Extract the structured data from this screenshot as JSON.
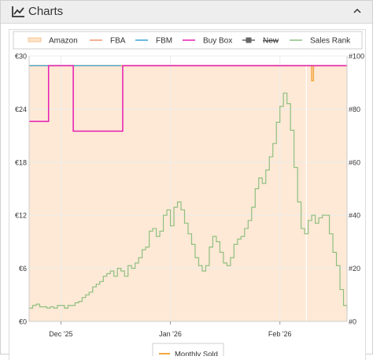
{
  "header": {
    "title": "Charts",
    "icon": "line-chart-icon",
    "collapse_icon": "chevron-up-icon"
  },
  "chart_data": {
    "type": "line",
    "legend": [
      {
        "name": "Amazon",
        "color": "#f7c89a",
        "style": "area",
        "struck": false
      },
      {
        "name": "FBA",
        "color": "#f0966e",
        "style": "line",
        "struck": false
      },
      {
        "name": "FBM",
        "color": "#3aa3d8",
        "style": "line",
        "struck": false
      },
      {
        "name": "Buy Box",
        "color": "#e61cb3",
        "style": "line",
        "struck": false
      },
      {
        "name": "New",
        "color": "#666666",
        "style": "square-line",
        "struck": true
      },
      {
        "name": "Sales Rank",
        "color": "#8fbf80",
        "style": "line",
        "struck": false
      }
    ],
    "bottom_legend": [
      {
        "name": "Monthly Sold",
        "color": "#f3a640"
      }
    ],
    "y_left_ticks": [
      "€0",
      "€6",
      "€12",
      "€18",
      "€24",
      "€30"
    ],
    "y_left_range": [
      0,
      30
    ],
    "y_right_ticks": [
      "#0",
      "#20",
      "#40",
      "#60",
      "#80",
      "#100"
    ],
    "y_right_range": [
      0,
      100
    ],
    "x_ticks": [
      {
        "label": "Dec '25",
        "day": 9
      },
      {
        "label": "Jan '26",
        "day": 40
      },
      {
        "label": "Feb '26",
        "day": 71
      }
    ],
    "x_range_days": [
      0,
      90
    ],
    "amazon_price": {
      "value": 28.9,
      "dip": {
        "day_from": 80,
        "day_to": 80.5,
        "value": 27.2
      }
    },
    "fbm_price": {
      "from_day": 0,
      "to_day": 26,
      "value": 28.9
    },
    "buy_box": [
      [
        0,
        22.6
      ],
      [
        5.5,
        22.6
      ],
      [
        5.5,
        28.9
      ],
      [
        12.5,
        28.9
      ],
      [
        12.5,
        21.5
      ],
      [
        26.5,
        21.5
      ],
      [
        26.5,
        28.9
      ],
      [
        90,
        28.9
      ]
    ],
    "sales_rank": [
      [
        0,
        5
      ],
      [
        1,
        6
      ],
      [
        2,
        6.5
      ],
      [
        3,
        5.5
      ],
      [
        4,
        5.5
      ],
      [
        5,
        5
      ],
      [
        6,
        5.5
      ],
      [
        7,
        5
      ],
      [
        8,
        6
      ],
      [
        9,
        6
      ],
      [
        10,
        5
      ],
      [
        11,
        6
      ],
      [
        12,
        6
      ],
      [
        13,
        7
      ],
      [
        14,
        7.5
      ],
      [
        15,
        9
      ],
      [
        16,
        10
      ],
      [
        17,
        11
      ],
      [
        18,
        13
      ],
      [
        19,
        14
      ],
      [
        20,
        15
      ],
      [
        21,
        17
      ],
      [
        22,
        18
      ],
      [
        23,
        19
      ],
      [
        24,
        17
      ],
      [
        25,
        20
      ],
      [
        26,
        19
      ],
      [
        27,
        17
      ],
      [
        28,
        21
      ],
      [
        29,
        20
      ],
      [
        30,
        22
      ],
      [
        31,
        24
      ],
      [
        32,
        27
      ],
      [
        33,
        28
      ],
      [
        34,
        34
      ],
      [
        35,
        35
      ],
      [
        36,
        32
      ],
      [
        37,
        34
      ],
      [
        38,
        40
      ],
      [
        39,
        42
      ],
      [
        40,
        36
      ],
      [
        41,
        43
      ],
      [
        42,
        45
      ],
      [
        43,
        42
      ],
      [
        44,
        37
      ],
      [
        45,
        33
      ],
      [
        46,
        29
      ],
      [
        47,
        24
      ],
      [
        48,
        21
      ],
      [
        49,
        19
      ],
      [
        50,
        21
      ],
      [
        51,
        28
      ],
      [
        52,
        32
      ],
      [
        53,
        30
      ],
      [
        54,
        26
      ],
      [
        55,
        22
      ],
      [
        56,
        21
      ],
      [
        57,
        24
      ],
      [
        58,
        29
      ],
      [
        59,
        31
      ],
      [
        60,
        32
      ],
      [
        61,
        35
      ],
      [
        62,
        38
      ],
      [
        63,
        43
      ],
      [
        64,
        50
      ],
      [
        65,
        54
      ],
      [
        66,
        52
      ],
      [
        67,
        57
      ],
      [
        68,
        62
      ],
      [
        69,
        67
      ],
      [
        70,
        75
      ],
      [
        71,
        81
      ],
      [
        72,
        86
      ],
      [
        73,
        82
      ],
      [
        74,
        72
      ],
      [
        75,
        58
      ],
      [
        76,
        45
      ],
      [
        77,
        35
      ],
      [
        78,
        33
      ],
      [
        79,
        38
      ],
      [
        80,
        40
      ],
      [
        81,
        37
      ],
      [
        82,
        39
      ],
      [
        83,
        40
      ],
      [
        84,
        40
      ],
      [
        85,
        33
      ],
      [
        86,
        26
      ],
      [
        87,
        21
      ],
      [
        88,
        12
      ],
      [
        89,
        6
      ],
      [
        90,
        4
      ]
    ]
  }
}
